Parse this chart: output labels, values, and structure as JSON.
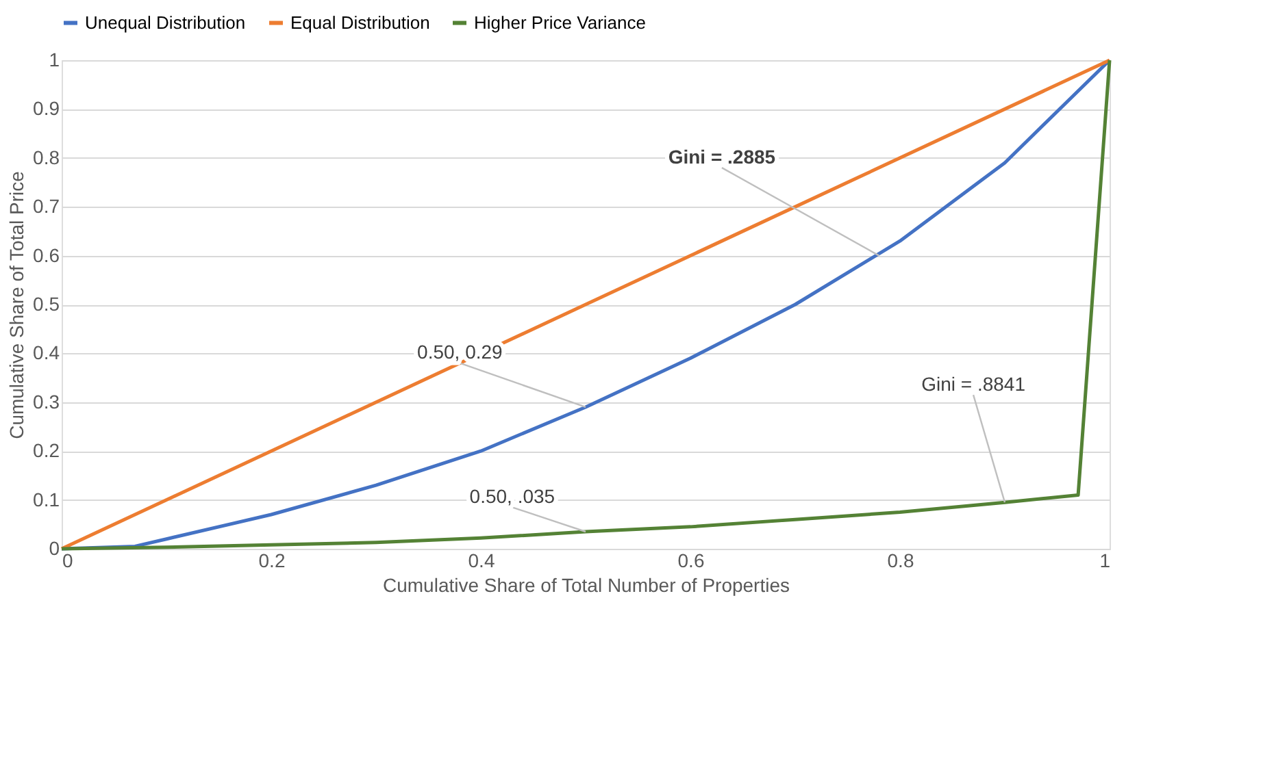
{
  "chart_data": {
    "type": "line",
    "xlabel": "Cumulative Share of Total Number of Properties",
    "ylabel": "Cumulative Share of Total Price",
    "series": [
      {
        "name": "Unequal Distribution",
        "color": "#4472c4",
        "x": [
          0,
          0.07,
          0.1,
          0.2,
          0.3,
          0.4,
          0.5,
          0.6,
          0.7,
          0.8,
          0.9,
          1
        ],
        "values": [
          0,
          0.005,
          0.02,
          0.07,
          0.13,
          0.2,
          0.29,
          0.39,
          0.5,
          0.63,
          0.79,
          1
        ]
      },
      {
        "name": "Equal Distribution",
        "color": "#ed7d31",
        "x": [
          0,
          0.5,
          1
        ],
        "values": [
          0,
          0.5,
          1
        ]
      },
      {
        "name": "Higher Price Variance",
        "color": "#548235",
        "x": [
          0,
          0.1,
          0.2,
          0.3,
          0.4,
          0.5,
          0.6,
          0.7,
          0.8,
          0.9,
          0.97,
          1
        ],
        "values": [
          0,
          0.003,
          0.008,
          0.013,
          0.022,
          0.035,
          0.045,
          0.06,
          0.075,
          0.095,
          0.11,
          1
        ]
      }
    ],
    "annotations": [
      {
        "text": "Gini = .2885",
        "x": 0.78,
        "y": 0.6
      },
      {
        "text": "0.50, 0.29",
        "x": 0.5,
        "y": 0.29
      },
      {
        "text": "0.50, .035",
        "x": 0.5,
        "y": 0.035
      },
      {
        "text": "Gini = .8841",
        "x": 0.9,
        "y": 0.095
      }
    ],
    "xlim": [
      0,
      1
    ],
    "xticks": [
      0,
      0.2,
      0.4,
      0.6,
      0.8,
      1
    ],
    "ylim": [
      0,
      1
    ],
    "yticks": [
      0,
      0.1,
      0.2,
      0.3,
      0.4,
      0.5,
      0.6,
      0.7,
      0.8,
      0.9,
      1
    ],
    "grid": "y",
    "legend": "top",
    "marker": "none",
    "line_style": "solid"
  }
}
